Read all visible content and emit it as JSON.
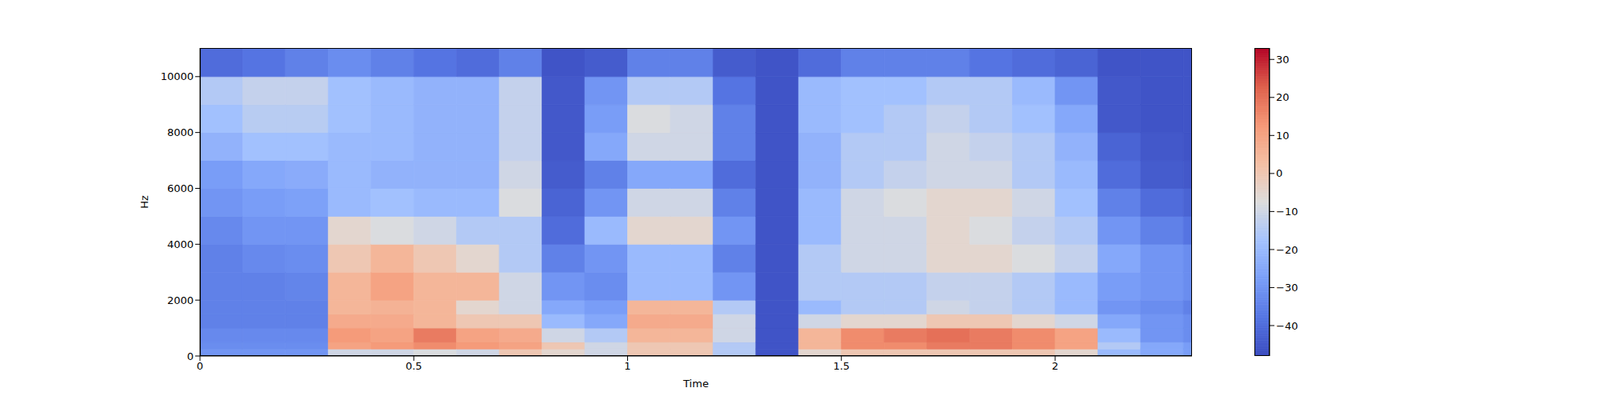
{
  "chart_data": {
    "type": "heatmap",
    "x_label": "Time",
    "y_label": "Hz",
    "xlim": [
      0,
      2.32
    ],
    "xticks": [
      0,
      0.5,
      1,
      1.5,
      2
    ],
    "ylim": [
      0,
      11025
    ],
    "yticks": [
      0,
      2000,
      4000,
      6000,
      8000,
      10000
    ],
    "time_edges": [
      0,
      0.1,
      0.2,
      0.3,
      0.4,
      0.5,
      0.6,
      0.7,
      0.8,
      0.9,
      1.0,
      1.1,
      1.2,
      1.3,
      1.4,
      1.5,
      1.6,
      1.7,
      1.8,
      1.9,
      2.0,
      2.1,
      2.2,
      2.3,
      2.32
    ],
    "freq_edges": [
      0,
      250,
      500,
      1000,
      1500,
      2000,
      3000,
      4000,
      5000,
      6000,
      7000,
      8000,
      9000,
      10000,
      11025
    ],
    "cells": [
      [
        -30,
        -32,
        -33,
        -35,
        -35,
        -35,
        -35,
        -33,
        -30,
        -28,
        -22,
        -18,
        -15,
        -40
      ],
      [
        -30,
        -32,
        -33,
        -35,
        -35,
        -35,
        -33,
        -30,
        -28,
        -25,
        -18,
        -14,
        -12,
        -38
      ],
      [
        -30,
        -32,
        -33,
        -35,
        -35,
        -34,
        -32,
        -30,
        -27,
        -24,
        -18,
        -14,
        -12,
        -35
      ],
      [
        -10,
        10,
        12,
        8,
        5,
        5,
        0,
        -5,
        -20,
        -20,
        -20,
        -18,
        -18,
        -32
      ],
      [
        -10,
        12,
        10,
        8,
        6,
        10,
        5,
        -8,
        -18,
        -22,
        -20,
        -20,
        -20,
        -35
      ],
      [
        -8,
        15,
        18,
        5,
        5,
        5,
        0,
        -10,
        -20,
        -22,
        -22,
        -22,
        -22,
        -38
      ],
      [
        -10,
        12,
        10,
        0,
        -5,
        5,
        -5,
        -15,
        -20,
        -22,
        -22,
        -22,
        -22,
        -40
      ],
      [
        0,
        10,
        8,
        0,
        -10,
        -10,
        -15,
        -15,
        -8,
        -10,
        -12,
        -12,
        -12,
        -35
      ],
      [
        -5,
        0,
        -10,
        -20,
        -25,
        -30,
        -35,
        -40,
        -42,
        -44,
        -45,
        -45,
        -45,
        -46
      ],
      [
        -10,
        -10,
        -15,
        -25,
        -28,
        -32,
        -30,
        -20,
        -30,
        -35,
        -25,
        -28,
        -30,
        -44
      ],
      [
        0,
        0,
        5,
        8,
        5,
        -20,
        -20,
        -5,
        -10,
        -25,
        -10,
        -8,
        -15,
        -35
      ],
      [
        0,
        0,
        5,
        8,
        5,
        -20,
        -20,
        -5,
        -10,
        -25,
        -10,
        -10,
        -15,
        -35
      ],
      [
        -15,
        -15,
        -10,
        -10,
        -15,
        -30,
        -35,
        -30,
        -35,
        -40,
        -35,
        -35,
        -38,
        -44
      ],
      [
        -46,
        -46,
        -46,
        -46,
        -46,
        -46,
        -46,
        -46,
        -46,
        -46,
        -46,
        -46,
        -46,
        -46
      ],
      [
        -5,
        5,
        5,
        -10,
        -20,
        -15,
        -15,
        -20,
        -20,
        -22,
        -22,
        -20,
        -20,
        -40
      ],
      [
        0,
        15,
        15,
        -5,
        -15,
        -15,
        -10,
        -10,
        -10,
        -15,
        -15,
        -18,
        -18,
        -35
      ],
      [
        0,
        15,
        18,
        -5,
        -15,
        -15,
        -10,
        -10,
        -8,
        -12,
        -15,
        -15,
        -18,
        -35
      ],
      [
        0,
        18,
        20,
        0,
        -10,
        -12,
        -5,
        -5,
        -5,
        -10,
        -10,
        -12,
        -15,
        -35
      ],
      [
        0,
        18,
        18,
        0,
        -12,
        -12,
        -5,
        -8,
        -5,
        -10,
        -12,
        -15,
        -15,
        -38
      ],
      [
        0,
        15,
        15,
        -5,
        -15,
        -15,
        -8,
        -12,
        -10,
        -15,
        -15,
        -18,
        -20,
        -40
      ],
      [
        -5,
        10,
        10,
        -10,
        -20,
        -20,
        -12,
        -15,
        -18,
        -20,
        -22,
        -25,
        -30,
        -42
      ],
      [
        -20,
        -15,
        -20,
        -25,
        -30,
        -28,
        -25,
        -30,
        -35,
        -40,
        -42,
        -45,
        -45,
        -46
      ],
      [
        -25,
        -25,
        -30,
        -30,
        -32,
        -30,
        -30,
        -35,
        -40,
        -44,
        -45,
        -46,
        -46,
        -46
      ],
      [
        -28,
        -28,
        -32,
        -32,
        -35,
        -32,
        -32,
        -38,
        -42,
        -45,
        -46,
        -46,
        -46,
        -46
      ]
    ],
    "colorbar_lim": [
      -48,
      33
    ],
    "colorbar_ticks": [
      {
        "value": -40,
        "label": "−40"
      },
      {
        "value": -30,
        "label": "−30"
      },
      {
        "value": -20,
        "label": "−20"
      },
      {
        "value": -10,
        "label": "−10"
      },
      0,
      10,
      20,
      30
    ]
  }
}
